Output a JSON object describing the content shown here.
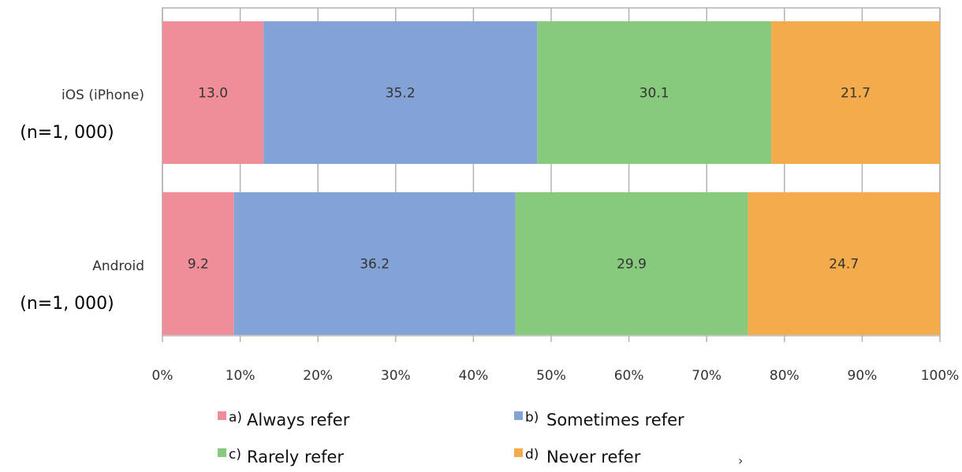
{
  "chart_data": {
    "type": "bar",
    "orientation": "horizontal",
    "stacked": true,
    "categories": [
      {
        "label": "iOS (iPhone)",
        "sample": "(n=1, 000)"
      },
      {
        "label": "Android",
        "sample": "(n=1, 000)"
      }
    ],
    "series": [
      {
        "name": "Always refer",
        "letter": "a)",
        "color": "#ef8e99",
        "values": [
          13.0,
          9.2
        ]
      },
      {
        "name": "Sometimes refer",
        "letter": "b)",
        "color": "#83a3d6",
        "values": [
          35.2,
          36.2
        ]
      },
      {
        "name": "Rarely refer",
        "letter": "c)",
        "color": "#87ca7d",
        "values": [
          30.1,
          29.9
        ]
      },
      {
        "name": "Never refer",
        "letter": "d)",
        "color": "#f4ab4b",
        "values": [
          21.7,
          24.7
        ]
      }
    ],
    "xlim": [
      0,
      100
    ],
    "x_ticks": [
      "0%",
      "10%",
      "20%",
      "30%",
      "40%",
      "50%",
      "60%",
      "70%",
      "80%",
      "90%",
      "100%"
    ],
    "grid": true,
    "legend_position": "bottom",
    "footnote_mark": "›"
  }
}
